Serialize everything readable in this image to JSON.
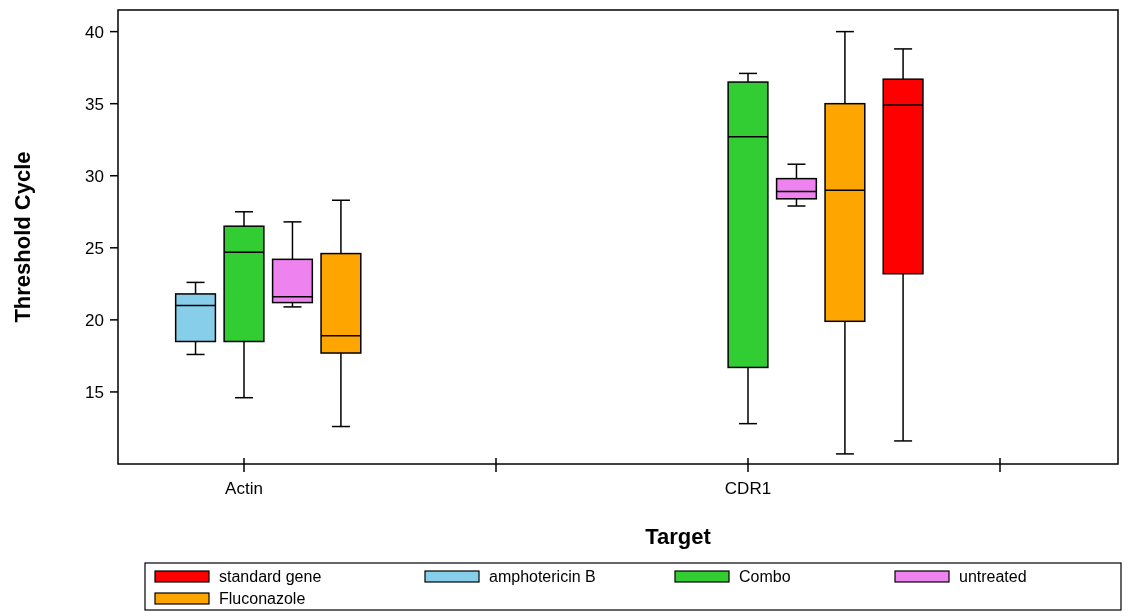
{
  "chart_data": {
    "type": "box",
    "xlabel": "Target",
    "ylabel": "Threshold Cycle",
    "categories": [
      "Actin",
      null,
      "CDR1",
      null
    ],
    "ylim": [
      10,
      41.5
    ],
    "yticks": [
      15,
      20,
      25,
      30,
      35,
      40
    ],
    "legend": "bottom",
    "series": [
      {
        "name": "standard gene",
        "color": "#ff0000",
        "boxes": [
          null,
          null,
          null,
          {
            "low": 11.6,
            "q1": 23.2,
            "median": 34.9,
            "q3": 36.7,
            "high": 38.8
          }
        ]
      },
      {
        "name": "amphotericin B",
        "color": "#87ceeb",
        "boxes": [
          {
            "low": 17.6,
            "q1": 18.5,
            "median": 21.0,
            "q3": 21.8,
            "high": 22.6
          },
          null,
          null,
          null
        ]
      },
      {
        "name": "Combo",
        "color": "#32cd32",
        "boxes": [
          {
            "low": 14.6,
            "q1": 18.5,
            "median": 24.7,
            "q3": 26.5,
            "high": 27.5
          },
          null,
          {
            "low": 12.8,
            "q1": 16.7,
            "median": 32.7,
            "q3": 36.5,
            "high": 37.1
          },
          null
        ]
      },
      {
        "name": "untreated",
        "color": "#ee82ee",
        "boxes": [
          {
            "low": 20.9,
            "q1": 21.2,
            "median": 21.6,
            "q3": 24.2,
            "high": 26.8
          },
          null,
          {
            "low": 27.9,
            "q1": 28.4,
            "median": 28.9,
            "q3": 29.8,
            "high": 30.8
          },
          null
        ]
      },
      {
        "name": "Fluconazole",
        "color": "#ffa500",
        "boxes": [
          {
            "low": 12.6,
            "q1": 17.7,
            "median": 18.9,
            "q3": 24.6,
            "high": 28.3
          },
          null,
          {
            "low": 10.7,
            "q1": 19.9,
            "median": 29.0,
            "q3": 35.0,
            "high": 40.0
          },
          null
        ]
      }
    ]
  }
}
